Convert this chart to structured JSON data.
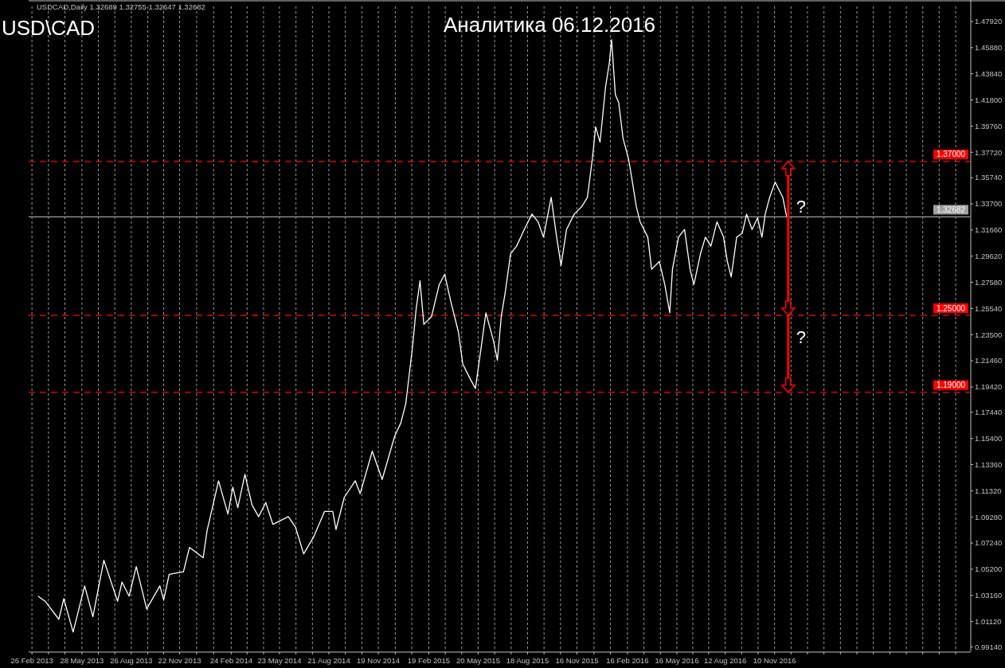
{
  "chart_data": {
    "type": "line",
    "title": "Аналитика 06.12.2016",
    "subtitle": "USD\\CAD",
    "annotations": [
      "USDCAD,Daily  1.32689 1.32755 1.32647 1.32682",
      "?",
      "?"
    ],
    "x": [
      "2013-03-09",
      "2013-03-22",
      "2013-04-16",
      "2013-04-25",
      "2013-05-12",
      "2013-06-02",
      "2013-06-17",
      "2013-07-07",
      "2013-08-01",
      "2013-08-09",
      "2013-08-22",
      "2013-09-04",
      "2013-09-23",
      "2013-10-17",
      "2013-10-24",
      "2013-11-03",
      "2013-11-29",
      "2013-12-10",
      "2014-01-04",
      "2014-01-11",
      "2014-02-01",
      "2014-02-18",
      "2014-02-27",
      "2014-03-08",
      "2014-03-21",
      "2014-04-03",
      "2014-04-15",
      "2014-04-28",
      "2014-05-11",
      "2014-06-08",
      "2014-06-21",
      "2014-07-06",
      "2014-07-24",
      "2014-08-13",
      "2014-08-28",
      "2014-09-03",
      "2014-09-18",
      "2014-10-08",
      "2014-10-17",
      "2014-11-08",
      "2014-11-26",
      "2014-12-19",
      "2014-12-30",
      "2015-01-08",
      "2015-01-20",
      "2015-01-27",
      "2015-02-03",
      "2015-02-10",
      "2015-02-24",
      "2015-03-10",
      "2015-03-20",
      "2015-03-31",
      "2015-04-14",
      "2015-04-22",
      "2015-05-06",
      "2015-05-15",
      "2015-05-27",
      "2015-06-03",
      "2015-06-17",
      "2015-06-24",
      "2015-07-01",
      "2015-07-08",
      "2015-07-18",
      "2015-07-29",
      "2015-08-12",
      "2015-08-26",
      "2015-09-06",
      "2015-09-16",
      "2015-09-30",
      "2015-10-10",
      "2015-10-18",
      "2015-10-28",
      "2015-11-11",
      "2015-11-25",
      "2015-12-05",
      "2015-12-14",
      "2015-12-20",
      "2015-12-28",
      "2016-01-07",
      "2016-01-14",
      "2016-01-18",
      "2016-01-25",
      "2016-01-31",
      "2016-02-08",
      "2016-02-18",
      "2016-02-25",
      "2016-03-03",
      "2016-03-10",
      "2016-03-24",
      "2016-03-31",
      "2016-04-14",
      "2016-04-24",
      "2016-05-03",
      "2016-05-08",
      "2016-05-19",
      "2016-05-30",
      "2016-06-09",
      "2016-06-16",
      "2016-06-28",
      "2016-07-07",
      "2016-07-17",
      "2016-07-28",
      "2016-08-09",
      "2016-08-16",
      "2016-08-23",
      "2016-09-02",
      "2016-09-12",
      "2016-09-20",
      "2016-09-30",
      "2016-10-10",
      "2016-10-18",
      "2016-10-24",
      "2016-11-01",
      "2016-11-11",
      "2016-11-18",
      "2016-11-25",
      "2016-12-02"
    ],
    "series": [
      {
        "color": "#ffffff",
        "values": [
          1.031,
          1.027,
          1.013,
          1.029,
          1.003,
          1.039,
          1.015,
          1.059,
          1.027,
          1.042,
          1.031,
          1.054,
          1.021,
          1.039,
          1.028,
          1.048,
          1.05,
          1.069,
          1.061,
          1.082,
          1.121,
          1.095,
          1.116,
          1.1,
          1.126,
          1.102,
          1.093,
          1.104,
          1.087,
          1.093,
          1.085,
          1.064,
          1.077,
          1.097,
          1.097,
          1.083,
          1.108,
          1.121,
          1.111,
          1.144,
          1.122,
          1.156,
          1.166,
          1.181,
          1.224,
          1.255,
          1.277,
          1.243,
          1.249,
          1.274,
          1.282,
          1.261,
          1.237,
          1.212,
          1.2,
          1.193,
          1.23,
          1.252,
          1.23,
          1.215,
          1.249,
          1.267,
          1.298,
          1.304,
          1.317,
          1.329,
          1.323,
          1.311,
          1.342,
          1.311,
          1.289,
          1.317,
          1.329,
          1.335,
          1.342,
          1.372,
          1.397,
          1.385,
          1.428,
          1.447,
          1.465,
          1.422,
          1.416,
          1.388,
          1.372,
          1.354,
          1.335,
          1.323,
          1.311,
          1.286,
          1.292,
          1.274,
          1.252,
          1.286,
          1.311,
          1.317,
          1.286,
          1.274,
          1.298,
          1.311,
          1.304,
          1.323,
          1.311,
          1.292,
          1.28,
          1.311,
          1.314,
          1.329,
          1.317,
          1.326,
          1.311,
          1.329,
          1.342,
          1.354,
          1.348,
          1.342,
          1.327
        ]
      }
    ],
    "xlim": [
      "2013-02-20",
      "2017-11-01"
    ],
    "xticks": [
      {
        "value": "2013-02-26",
        "label": "26 Feb 2013"
      },
      {
        "value": "2013-03-28",
        "label": null
      },
      {
        "value": "2013-04-27",
        "label": null
      },
      {
        "value": "2013-05-28",
        "label": "28 May 2013"
      },
      {
        "value": "2013-06-27",
        "label": null
      },
      {
        "value": "2013-07-27",
        "label": null
      },
      {
        "value": "2013-08-26",
        "label": "26 Aug 2013"
      },
      {
        "value": "2013-09-25",
        "label": null
      },
      {
        "value": "2013-10-24",
        "label": null
      },
      {
        "value": "2013-11-22",
        "label": "22 Nov 2013"
      },
      {
        "value": "2013-12-23",
        "label": null
      },
      {
        "value": "2014-01-23",
        "label": null
      },
      {
        "value": "2014-02-24",
        "label": "24 Feb 2014"
      },
      {
        "value": "2014-03-25",
        "label": null
      },
      {
        "value": "2014-04-24",
        "label": null
      },
      {
        "value": "2014-05-23",
        "label": "23 May 2014"
      },
      {
        "value": "2014-06-22",
        "label": null
      },
      {
        "value": "2014-07-22",
        "label": null
      },
      {
        "value": "2014-08-21",
        "label": "21 Aug 2014"
      },
      {
        "value": "2014-09-20",
        "label": null
      },
      {
        "value": "2014-10-20",
        "label": null
      },
      {
        "value": "2014-11-19",
        "label": "19 Nov 2014"
      },
      {
        "value": "2014-12-20",
        "label": null
      },
      {
        "value": "2015-01-19",
        "label": null
      },
      {
        "value": "2015-02-19",
        "label": "19 Feb 2015"
      },
      {
        "value": "2015-03-21",
        "label": null
      },
      {
        "value": "2015-04-20",
        "label": null
      },
      {
        "value": "2015-05-20",
        "label": "20 May 2015"
      },
      {
        "value": "2015-06-19",
        "label": null
      },
      {
        "value": "2015-07-19",
        "label": null
      },
      {
        "value": "2015-08-18",
        "label": "18 Aug 2015"
      },
      {
        "value": "2015-09-17",
        "label": null
      },
      {
        "value": "2015-10-17",
        "label": null
      },
      {
        "value": "2015-11-16",
        "label": "16 Nov 2015"
      },
      {
        "value": "2015-12-17",
        "label": null
      },
      {
        "value": "2016-01-16",
        "label": null
      },
      {
        "value": "2016-02-16",
        "label": "16 Feb 2016"
      },
      {
        "value": "2016-03-17",
        "label": null
      },
      {
        "value": "2016-04-16",
        "label": null
      },
      {
        "value": "2016-05-16",
        "label": "16 May 2016"
      },
      {
        "value": "2016-06-14",
        "label": null
      },
      {
        "value": "2016-07-13",
        "label": null
      },
      {
        "value": "2016-08-12",
        "label": "12 Aug 2016"
      },
      {
        "value": "2016-09-11",
        "label": null
      },
      {
        "value": "2016-10-11",
        "label": null
      },
      {
        "value": "2016-11-10",
        "label": "10 Nov 2016"
      },
      {
        "value": "2016-12-10",
        "label": null
      },
      {
        "value": "2017-01-09",
        "label": null
      },
      {
        "value": "2017-02-08",
        "label": null
      },
      {
        "value": "2017-03-10",
        "label": null
      },
      {
        "value": "2017-04-09",
        "label": null
      },
      {
        "value": "2017-05-09",
        "label": null
      },
      {
        "value": "2017-06-08",
        "label": null
      },
      {
        "value": "2017-07-08",
        "label": null
      },
      {
        "value": "2017-08-07",
        "label": null
      },
      {
        "value": "2017-09-06",
        "label": null
      },
      {
        "value": "2017-10-06",
        "label": null
      }
    ],
    "ylim": [
      0.988,
      1.491
    ],
    "yticks": [
      {
        "value": 0.9914,
        "label": "0.99140"
      },
      {
        "value": 1.0112,
        "label": "1.01120"
      },
      {
        "value": 1.0316,
        "label": "1.03160"
      },
      {
        "value": 1.052,
        "label": "1.05200"
      },
      {
        "value": 1.0724,
        "label": "1.07240"
      },
      {
        "value": 1.0928,
        "label": "1.09280"
      },
      {
        "value": 1.1132,
        "label": "1.11320"
      },
      {
        "value": 1.1336,
        "label": "1.13360"
      },
      {
        "value": 1.154,
        "label": "1.15400"
      },
      {
        "value": 1.1744,
        "label": "1.17440"
      },
      {
        "value": 1.1942,
        "label": "1.19420"
      },
      {
        "value": 1.2146,
        "label": "1.21460"
      },
      {
        "value": 1.235,
        "label": "1.23500"
      },
      {
        "value": 1.2554,
        "label": "1.25540"
      },
      {
        "value": 1.2758,
        "label": "1.27580"
      },
      {
        "value": 1.2962,
        "label": "1.29620"
      },
      {
        "value": 1.3166,
        "label": "1.31660"
      },
      {
        "value": 1.337,
        "label": "1.33700"
      },
      {
        "value": 1.3574,
        "label": "1.35740"
      },
      {
        "value": 1.3772,
        "label": "1.37720"
      },
      {
        "value": 1.3976,
        "label": "1.39760"
      },
      {
        "value": 1.418,
        "label": "1.41800"
      },
      {
        "value": 1.4384,
        "label": "1.43840"
      },
      {
        "value": 1.4588,
        "label": "1.45880"
      },
      {
        "value": 1.4792,
        "label": "1.47920"
      }
    ],
    "ref_lines": [
      {
        "axis": "y",
        "value": 1.37,
        "label": "1.37000",
        "color": "#ff0000",
        "line_style": "dashed"
      },
      {
        "axis": "y",
        "value": 1.32682,
        "label": "1.32682",
        "color": "#a0a0a0",
        "line_style": "solid"
      },
      {
        "axis": "y",
        "value": 1.25,
        "label": "1.25000",
        "color": "#ff0000",
        "line_style": "dashed"
      },
      {
        "axis": "y",
        "value": 1.19,
        "label": "1.19000",
        "color": "#ff0000",
        "line_style": "dashed"
      }
    ],
    "grid": "x",
    "marker": "none",
    "line_style": "solid"
  }
}
